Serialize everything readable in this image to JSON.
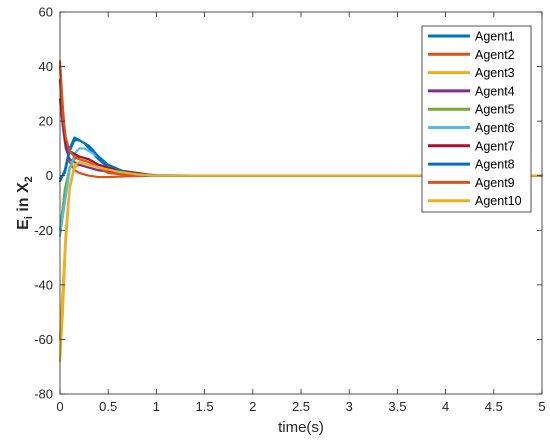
{
  "chart_data": {
    "type": "line",
    "title": "",
    "xlabel": "time(s)",
    "ylabel": "E",
    "ylabel_sub_i": "i",
    "ylabel_mid": " in X",
    "ylabel_sub_2": "2",
    "xlim": [
      0,
      5
    ],
    "ylim": [
      -80,
      60
    ],
    "xticks": [
      0,
      0.5,
      1,
      1.5,
      2,
      2.5,
      3,
      3.5,
      4,
      4.5,
      5
    ],
    "xtick_labels": [
      "0",
      "0.5",
      "1",
      "1.5",
      "2",
      "2.5",
      "3",
      "3.5",
      "4",
      "4.5",
      "5"
    ],
    "yticks": [
      -80,
      -60,
      -40,
      -20,
      0,
      20,
      40,
      60
    ],
    "ytick_labels": [
      "-80",
      "-60",
      "-40",
      "-20",
      "0",
      "20",
      "40",
      "60"
    ],
    "grid": false,
    "legend_position": "top-right",
    "series": [
      {
        "name": "Agent1",
        "color": "#0072BD",
        "x": [
          0,
          0.05,
          0.1,
          0.15,
          0.2,
          0.25,
          0.3,
          0.4,
          0.5,
          0.7,
          1,
          1.5,
          2,
          3,
          4,
          5
        ],
        "y": [
          -1,
          1,
          9,
          13,
          13,
          12,
          10,
          6,
          3,
          1,
          0.2,
          0,
          0,
          0,
          0,
          0
        ]
      },
      {
        "name": "Agent2",
        "color": "#D95319",
        "x": [
          0,
          0.03,
          0.06,
          0.1,
          0.15,
          0.2,
          0.3,
          0.4,
          0.5,
          0.7,
          1,
          2,
          3,
          4,
          5
        ],
        "y": [
          42,
          25,
          12,
          5,
          2,
          1,
          0,
          -0.5,
          -0.5,
          -0.2,
          0,
          0,
          0,
          0,
          0
        ]
      },
      {
        "name": "Agent3",
        "color": "#EDB120",
        "x": [
          0,
          0.03,
          0.06,
          0.1,
          0.15,
          0.2,
          0.3,
          0.4,
          0.6,
          0.8,
          1,
          2,
          3,
          4,
          5
        ],
        "y": [
          -68,
          -50,
          -25,
          -5,
          3,
          4,
          3,
          2,
          1,
          0.3,
          0,
          0,
          0,
          0,
          0
        ]
      },
      {
        "name": "Agent4",
        "color": "#7E2F8E",
        "x": [
          0,
          0.03,
          0.06,
          0.1,
          0.15,
          0.2,
          0.3,
          0.4,
          0.6,
          1,
          2,
          3,
          4,
          5
        ],
        "y": [
          28,
          18,
          10,
          6,
          5,
          4,
          3,
          2,
          1,
          0,
          0,
          0,
          0,
          0
        ]
      },
      {
        "name": "Agent5",
        "color": "#77AC30",
        "x": [
          0,
          0.05,
          0.1,
          0.15,
          0.2,
          0.3,
          0.4,
          0.6,
          0.8,
          1,
          2,
          3,
          4,
          5
        ],
        "y": [
          -20,
          -5,
          3,
          6,
          7,
          6,
          4,
          2,
          1,
          0,
          0,
          0,
          0,
          0
        ]
      },
      {
        "name": "Agent6",
        "color": "#4DBEEE",
        "x": [
          0,
          0.05,
          0.1,
          0.15,
          0.2,
          0.25,
          0.3,
          0.4,
          0.5,
          0.6,
          0.8,
          1,
          2,
          3,
          4,
          5
        ],
        "y": [
          -22,
          -10,
          2,
          8,
          10,
          10,
          9,
          7,
          4,
          2,
          1,
          0,
          0,
          0,
          0,
          0
        ]
      },
      {
        "name": "Agent7",
        "color": "#A2142F",
        "x": [
          0,
          0.03,
          0.06,
          0.1,
          0.15,
          0.2,
          0.3,
          0.4,
          0.6,
          1,
          2,
          3,
          4,
          5
        ],
        "y": [
          35,
          20,
          12,
          9,
          8,
          7,
          6,
          4,
          2,
          0,
          0,
          0,
          0,
          0
        ]
      },
      {
        "name": "Agent8",
        "color": "#0072BD",
        "x": [
          0,
          0.05,
          0.1,
          0.15,
          0.2,
          0.25,
          0.3,
          0.4,
          0.5,
          0.7,
          1,
          2,
          3,
          4,
          5
        ],
        "y": [
          -2,
          2,
          10,
          14,
          13,
          12,
          11,
          7,
          4,
          1,
          0,
          0,
          0,
          0,
          0
        ]
      },
      {
        "name": "Agent9",
        "color": "#D95319",
        "x": [
          0,
          0.03,
          0.06,
          0.1,
          0.15,
          0.2,
          0.3,
          0.4,
          0.5,
          0.7,
          1,
          2,
          3,
          4,
          5
        ],
        "y": [
          40,
          22,
          14,
          9,
          7,
          6,
          5,
          3,
          1,
          0.3,
          0,
          0,
          0,
          0,
          0
        ]
      },
      {
        "name": "Agent10",
        "color": "#EDB120",
        "x": [
          0,
          0.03,
          0.06,
          0.1,
          0.15,
          0.2,
          0.3,
          0.4,
          0.6,
          0.8,
          1,
          2,
          3,
          4,
          5
        ],
        "y": [
          -60,
          -40,
          -20,
          -4,
          4,
          5,
          4,
          3,
          1.5,
          0.5,
          0,
          0,
          0,
          0,
          0
        ]
      }
    ]
  }
}
